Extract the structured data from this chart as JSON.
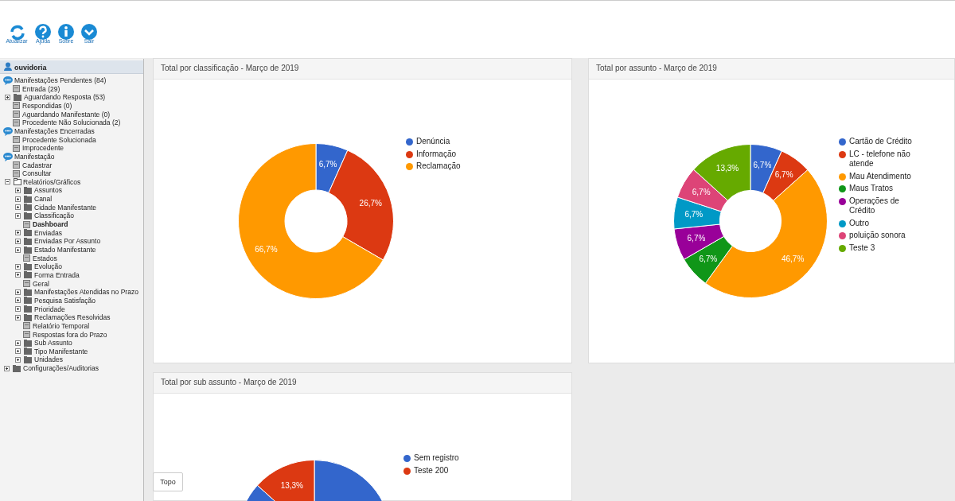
{
  "chart_data": [
    {
      "type": "other",
      "annotations": [
        "Atualizar",
        "Ajuda",
        "Sobre",
        "Sair",
        "ouvidoria",
        "Manifestações Pendentes (84)",
        "Entrada (29)",
        "Aguardando Resposta (53)",
        "Respondidas (0)",
        "Aguardando Manifestante (0)",
        "Procedente Não Solucionada (2)",
        "Manifestações Encerradas",
        "Procedente Solucionada",
        "Improcedente",
        "Manifestação",
        "Cadastrar",
        "Consultar",
        "Relatórios/Gráficos",
        "Assuntos",
        "Canal",
        "Cidade Manifestante",
        "Classificação",
        "Dashboard",
        "Enviadas",
        "Enviadas Por Assunto",
        "Estado Manifestante",
        "Estados",
        "Evolução",
        "Forma Entrada",
        "Geral",
        "Manifestações Atendidas no Prazo",
        "Pesquisa Satisfação",
        "Prioridade",
        "Reclamações Resolvidas",
        "Relatório Temporal",
        "Respostas fora do Prazo",
        "Sub Assunto",
        "Tipo Manifestante",
        "Unidades",
        "Configurações/Auditorias",
        "Topo"
      ]
    },
    {
      "type": "donut",
      "title": "Total por classificação - Março de 2019",
      "categories": [
        "Denúncia",
        "Informação",
        "Reclamação"
      ],
      "values": [
        6.7,
        26.7,
        66.7
      ],
      "colors": [
        "#3366cc",
        "#dc3912",
        "#ff9900"
      ],
      "value_labels": [
        "6,7%",
        "26,7%",
        "66,7%"
      ],
      "legend": "right"
    },
    {
      "type": "donut",
      "title": "Total por assunto - Março de 2019",
      "categories": [
        "Cartão de Crédito",
        "LC - telefone não atende",
        "Mau Atendimento",
        "Maus Tratos",
        "Operações de Crédito",
        "Outro",
        "poluição sonora",
        "Teste 3"
      ],
      "values": [
        6.7,
        6.7,
        46.7,
        6.7,
        6.7,
        6.7,
        6.7,
        13.3
      ],
      "colors": [
        "#3366cc",
        "#dc3912",
        "#ff9900",
        "#109618",
        "#990099",
        "#0099c6",
        "#dd4477",
        "#66aa00"
      ],
      "value_labels": [
        "6,7%",
        "6,7%",
        "46,7%",
        "6,7%",
        "6,7%",
        "6,7%",
        "6,7%",
        "13,3%"
      ],
      "legend": "right"
    },
    {
      "type": "pie",
      "title": "Total por sub assunto - Março de 2019",
      "categories": [
        "Sem registro",
        "Teste 200"
      ],
      "values": [
        86.7,
        13.3
      ],
      "colors": [
        "#3366cc",
        "#dc3912"
      ],
      "value_labels": [
        null,
        "13,3%"
      ],
      "legend": "right"
    }
  ]
}
